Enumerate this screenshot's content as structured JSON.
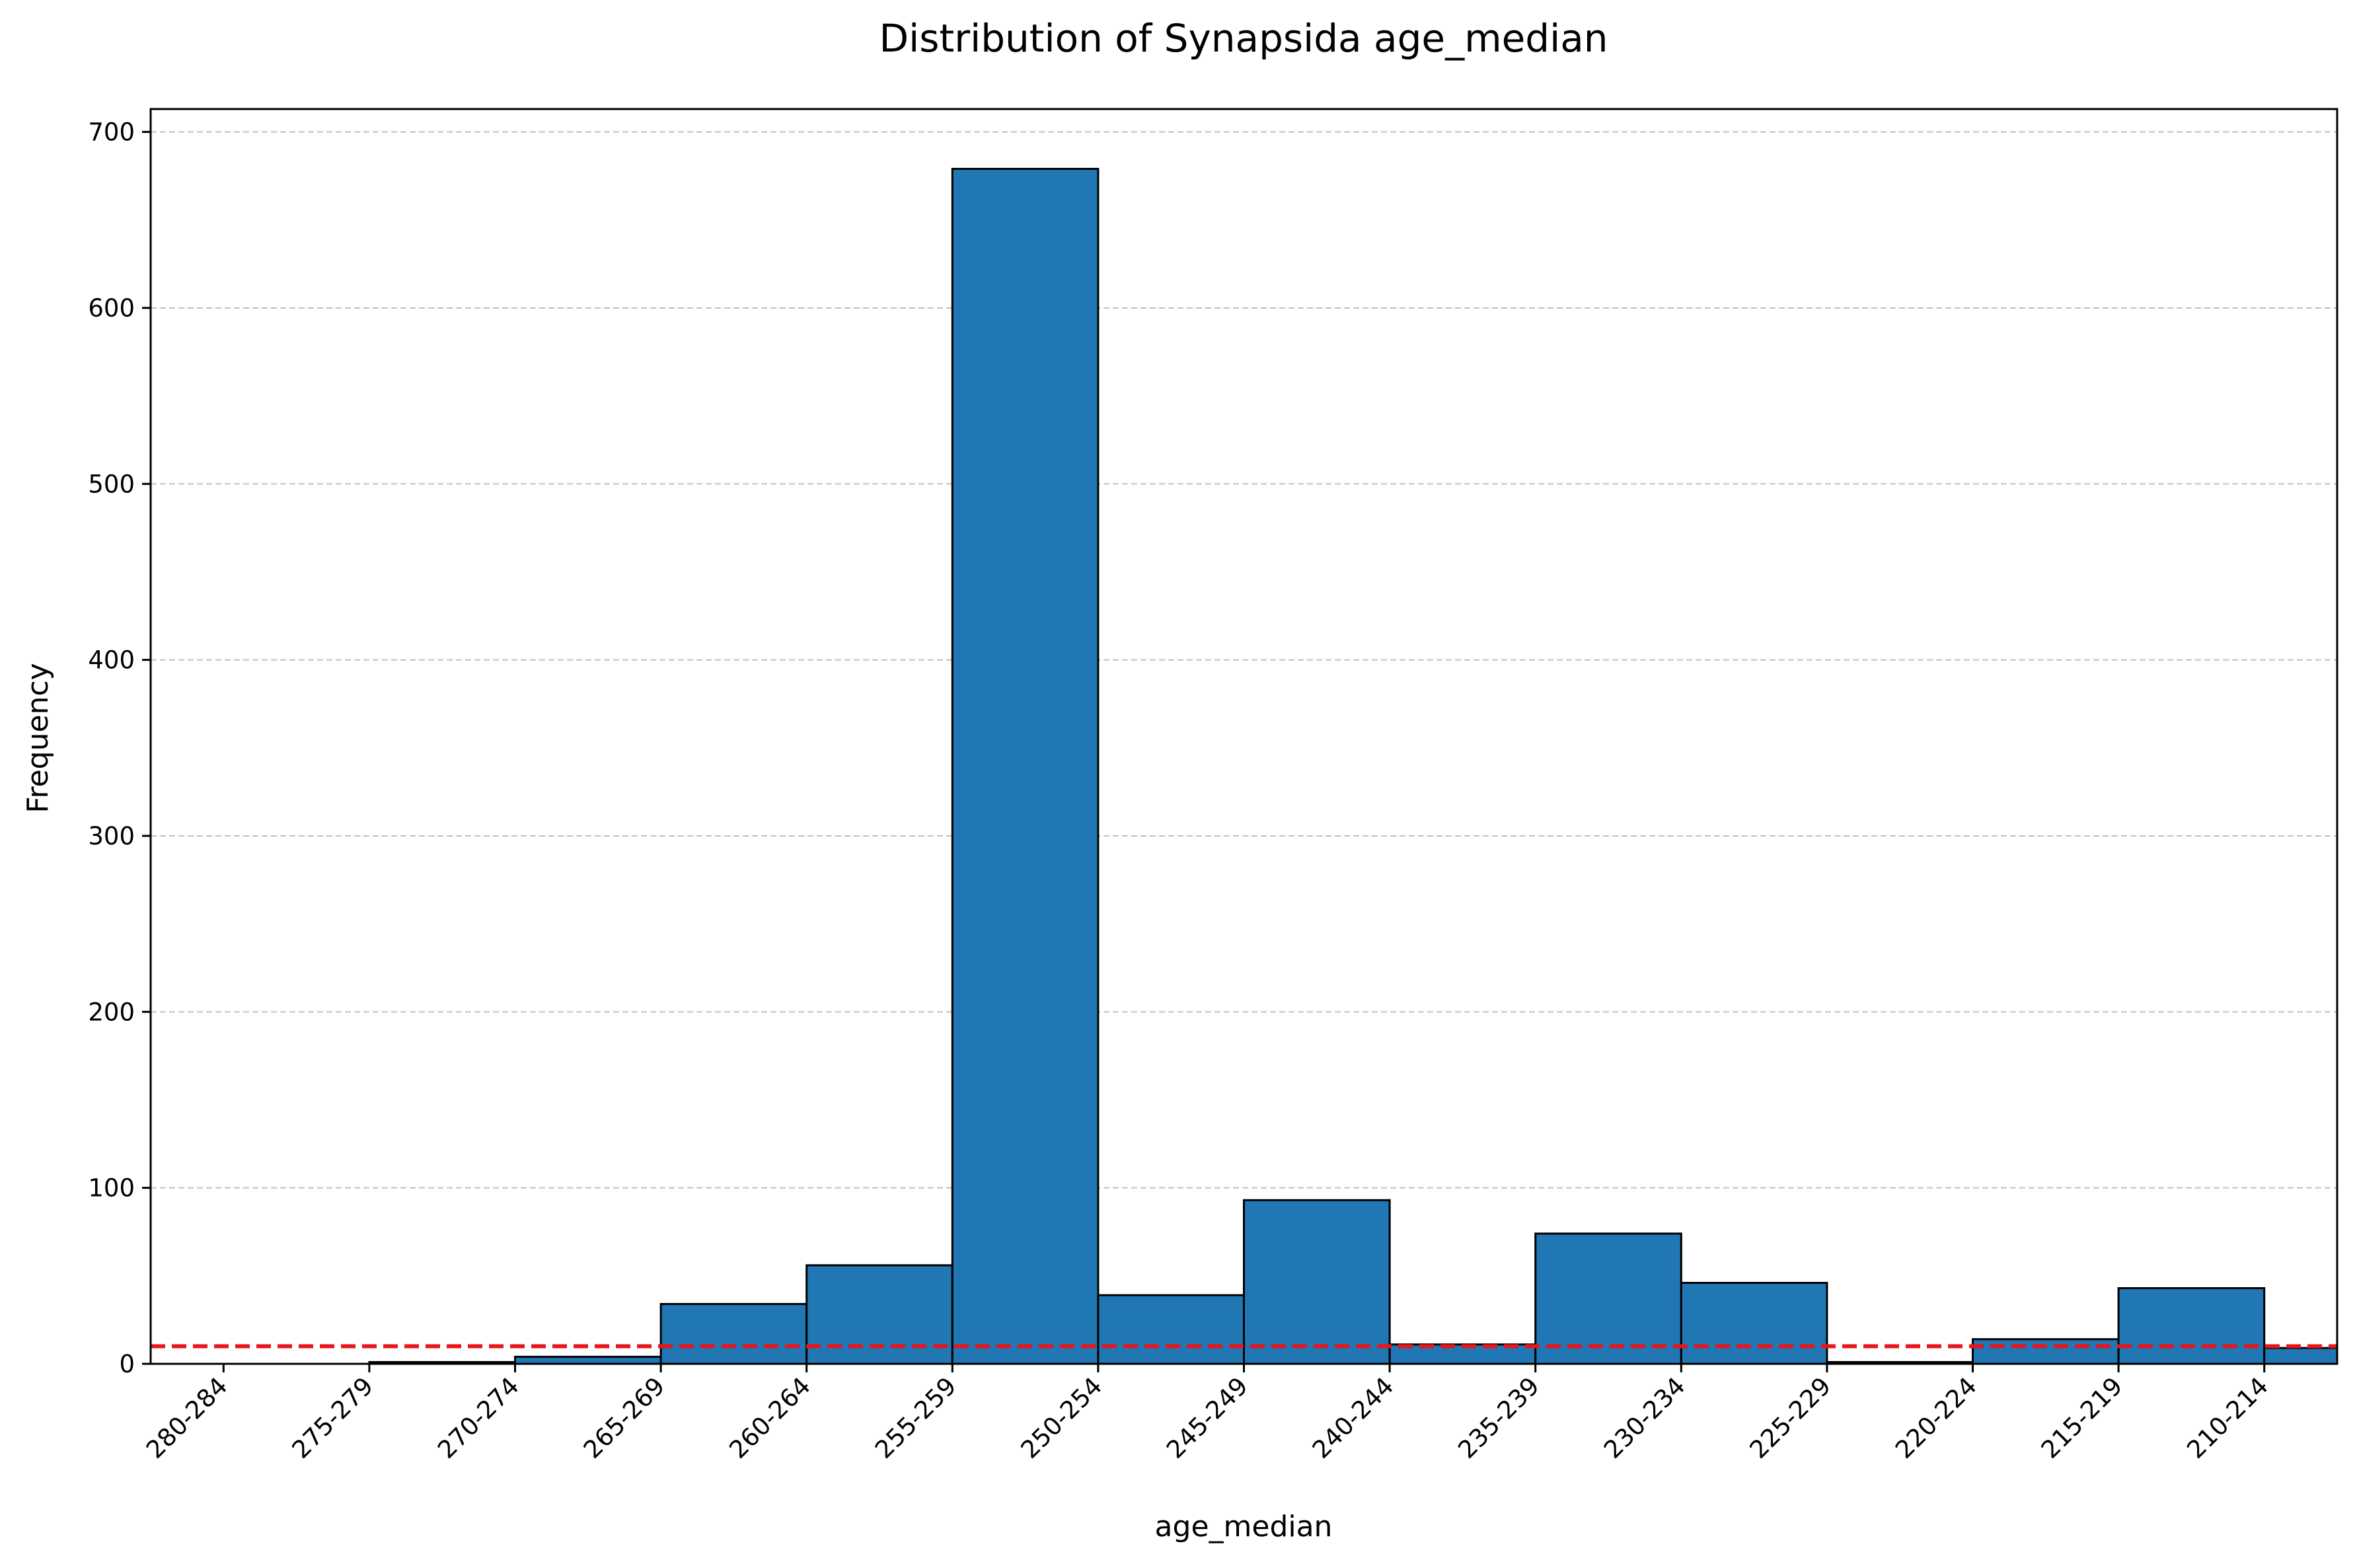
{
  "chart_data": {
    "type": "bar",
    "title": "Distribution of Synapsida age_median",
    "xlabel": "age_median",
    "ylabel": "Frequency",
    "categories": [
      "280-284",
      "275-279",
      "270-274",
      "265-269",
      "260-264",
      "255-259",
      "250-254",
      "245-249",
      "240-244",
      "235-239",
      "230-234",
      "225-229",
      "220-224",
      "215-219",
      "210-214"
    ],
    "bins": [
      {
        "start": 0,
        "end": 1,
        "value": 0
      },
      {
        "start": 1,
        "end": 2,
        "value": 1
      },
      {
        "start": 2,
        "end": 3,
        "value": 4
      },
      {
        "start": 3,
        "end": 4,
        "value": 34
      },
      {
        "start": 4,
        "end": 5,
        "value": 56
      },
      {
        "start": 5,
        "end": 6,
        "value": 679
      },
      {
        "start": 6,
        "end": 7,
        "value": 39
      },
      {
        "start": 7,
        "end": 8,
        "value": 93
      },
      {
        "start": 8,
        "end": 9,
        "value": 11
      },
      {
        "start": 9,
        "end": 10,
        "value": 74
      },
      {
        "start": 10,
        "end": 11,
        "value": 46
      },
      {
        "start": 11,
        "end": 12,
        "value": 1
      },
      {
        "start": 12,
        "end": 13,
        "value": 14
      },
      {
        "start": 13,
        "end": 14,
        "value": 43
      },
      {
        "start": 14,
        "end": 14.5,
        "value": 9
      }
    ],
    "xlim": [
      -0.5,
      14.5
    ],
    "ylim": [
      0,
      713
    ],
    "yticks": [
      0,
      100,
      200,
      300,
      400,
      500,
      600,
      700
    ],
    "reference_line": {
      "y": 10,
      "color": "#e8161b",
      "style": "dashed"
    },
    "bar_color": "#2077b4",
    "edge_color": "#000000",
    "grid": {
      "y": true,
      "x": false,
      "color": "#c0c0c0",
      "style": "dashed"
    },
    "legend": "none"
  }
}
